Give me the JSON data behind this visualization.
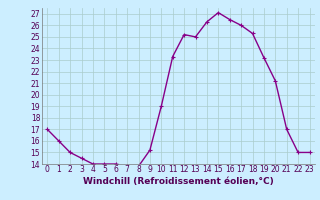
{
  "hours": [
    0,
    1,
    2,
    3,
    4,
    5,
    6,
    7,
    8,
    9,
    10,
    11,
    12,
    13,
    14,
    15,
    16,
    17,
    18,
    19,
    20,
    21,
    22,
    23
  ],
  "values": [
    17,
    16,
    15,
    14.5,
    14,
    14,
    14,
    13.8,
    13.8,
    15.2,
    19,
    23.3,
    25.2,
    25,
    26.3,
    27.1,
    26.5,
    26,
    25.3,
    23.2,
    21.2,
    17,
    15,
    15
  ],
  "line_color": "#880088",
  "marker": "+",
  "bg_color": "#cceeff",
  "grid_color": "#aacccc",
  "xlabel": "Windchill (Refroidissement éolien,°C)",
  "ylim": [
    14,
    27.5
  ],
  "yticks": [
    14,
    15,
    16,
    17,
    18,
    19,
    20,
    21,
    22,
    23,
    24,
    25,
    26,
    27
  ],
  "xticks": [
    0,
    1,
    2,
    3,
    4,
    5,
    6,
    7,
    8,
    9,
    10,
    11,
    12,
    13,
    14,
    15,
    16,
    17,
    18,
    19,
    20,
    21,
    22,
    23
  ],
  "tick_fontsize": 5.5,
  "xlabel_fontsize": 6.5,
  "line_width": 1.0,
  "marker_size": 3.5
}
